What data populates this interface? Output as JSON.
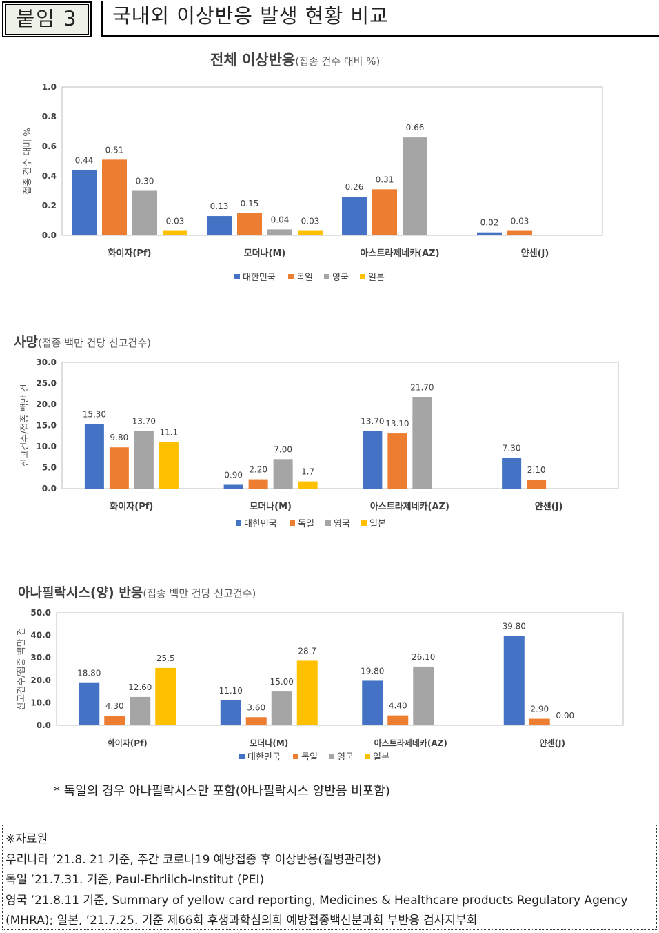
{
  "header": {
    "tag": "붙임 3",
    "title": "국내외 이상반응 발생 현황 비교"
  },
  "colors": {
    "대한민국": "#4472c4",
    "독일": "#ed7d31",
    "영국": "#a5a5a5",
    "일본": "#ffc000"
  },
  "chart_data": [
    {
      "type": "bar",
      "title": "전체 이상반응",
      "subtitle": "(접종 건수 대비 %)",
      "ylabel": "접종 건수 대비 %",
      "ylim": [
        0,
        1.0
      ],
      "yticks": [
        "0.0",
        "0.2",
        "0.4",
        "0.6",
        "0.8",
        "1.0"
      ],
      "categories": [
        "화이자(Pf)",
        "모더나(M)",
        "아스트라제네카(AZ)",
        "얀센(J)"
      ],
      "legend_position": "bottom",
      "series": [
        {
          "name": "대한민국",
          "values": [
            0.44,
            0.13,
            0.26,
            0.02
          ],
          "labels": [
            "0.44",
            "0.13",
            "0.26",
            "0.02"
          ]
        },
        {
          "name": "독일",
          "values": [
            0.51,
            0.15,
            0.31,
            0.03
          ],
          "labels": [
            "0.51",
            "0.15",
            "0.31",
            "0.03"
          ]
        },
        {
          "name": "영국",
          "values": [
            0.3,
            0.04,
            0.66,
            null
          ],
          "labels": [
            "0.30",
            "0.04",
            "0.66",
            ""
          ]
        },
        {
          "name": "일본",
          "values": [
            0.03,
            0.03,
            null,
            null
          ],
          "labels": [
            "0.03",
            "0.03",
            "",
            ""
          ]
        }
      ]
    },
    {
      "type": "bar",
      "title": "사망",
      "subtitle": "(접종 백만 건당 신고건수)",
      "ylabel": "신고건수/접종 백만 건",
      "ylim": [
        0,
        30.0
      ],
      "yticks": [
        "0.0",
        "5.0",
        "10.0",
        "15.0",
        "20.0",
        "25.0",
        "30.0"
      ],
      "categories": [
        "화이자(Pf)",
        "모더나(M)",
        "아스트라제네카(AZ)",
        "얀센(J)"
      ],
      "legend_position": "bottom",
      "series": [
        {
          "name": "대한민국",
          "values": [
            15.3,
            0.9,
            13.7,
            7.3
          ],
          "labels": [
            "15.30",
            "0.90",
            "13.70",
            "7.30"
          ]
        },
        {
          "name": "독일",
          "values": [
            9.8,
            2.2,
            13.1,
            2.1
          ],
          "labels": [
            "9.80",
            "2.20",
            "13.10",
            "2.10"
          ]
        },
        {
          "name": "영국",
          "values": [
            13.7,
            7.0,
            21.7,
            null
          ],
          "labels": [
            "13.70",
            "7.00",
            "21.70",
            ""
          ]
        },
        {
          "name": "일본",
          "values": [
            11.1,
            1.7,
            null,
            null
          ],
          "labels": [
            "11.1",
            "1.7",
            "",
            ""
          ]
        }
      ]
    },
    {
      "type": "bar",
      "title": "아나필락시스(양) 반응",
      "subtitle": "(접종 백만 건당 신고건수)",
      "ylabel": "신고건수/접종 백만 건",
      "ylim": [
        0,
        50.0
      ],
      "yticks": [
        "0.0",
        "10.0",
        "20.0",
        "30.0",
        "40.0",
        "50.0"
      ],
      "categories": [
        "화이자(Pf)",
        "모더나(M)",
        "아스트라제네카(AZ)",
        "얀센(J)"
      ],
      "legend_position": "bottom",
      "series": [
        {
          "name": "대한민국",
          "values": [
            18.8,
            11.1,
            19.8,
            39.8
          ],
          "labels": [
            "18.80",
            "11.10",
            "19.80",
            "39.80"
          ]
        },
        {
          "name": "독일",
          "values": [
            4.3,
            3.6,
            4.4,
            2.9
          ],
          "labels": [
            "4.30",
            "3.60",
            "4.40",
            "2.90"
          ]
        },
        {
          "name": "영국",
          "values": [
            12.6,
            15.0,
            26.1,
            0.0
          ],
          "labels": [
            "12.60",
            "15.00",
            "26.10",
            "0.00"
          ]
        },
        {
          "name": "일본",
          "values": [
            25.5,
            28.7,
            null,
            null
          ],
          "labels": [
            "25.5",
            "28.7",
            "",
            ""
          ]
        }
      ]
    }
  ],
  "note": "* 독일의 경우 아나필락시스만 포함(아나필락시스 양반응 비포함)",
  "sources": {
    "heading": "※자료원",
    "lines": [
      "우리나라 ’21.8. 21 기준, 주간 코로나19 예방접종 후 이상반응(질병관리청)",
      "독일 ’21.7.31. 기준, Paul-Ehrlilch-Institut (PEI)",
      "영국 ’21.8.11 기준, Summary of yellow card reporting, Medicines & Healthcare products Regulatory Agency",
      "(MHRA); 일본, ’21.7.25. 기준 제66회 후생과학심의회 예방접종백신분과회 부반응 검사지부회"
    ]
  }
}
